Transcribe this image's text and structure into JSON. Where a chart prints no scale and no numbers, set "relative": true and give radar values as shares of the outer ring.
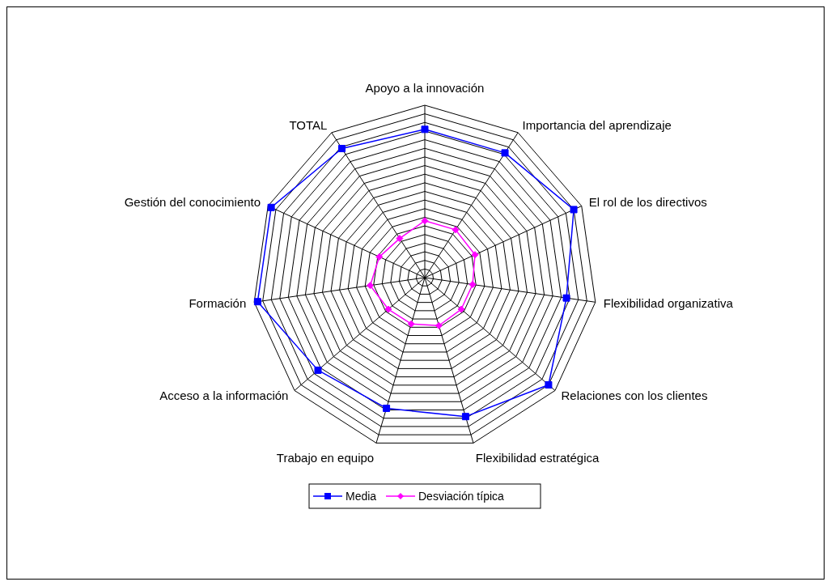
{
  "chart_data": {
    "type": "radar",
    "relative": true,
    "grid": true,
    "legend": "bottom",
    "categories": [
      "Apoyo a la innovación",
      "Importancia del aprendizaje",
      "El rol de los directivos",
      "Flexibilidad organizativa",
      "Relaciones con los clientes",
      "Flexibilidad estratégica",
      "Trabajo en equipo",
      "Acceso a la información",
      "Formación",
      "Gestión del conocimiento",
      "TOTAL"
    ],
    "series": [
      {
        "name": "Media",
        "color": "#0000ff",
        "marker": "square",
        "values": [
          0.86,
          0.86,
          0.95,
          0.83,
          0.95,
          0.84,
          0.79,
          0.82,
          0.98,
          0.98,
          0.89
        ]
      },
      {
        "name": "Desviación típica",
        "color": "#ff00ff",
        "marker": "diamond",
        "values": [
          0.33,
          0.33,
          0.32,
          0.28,
          0.28,
          0.29,
          0.28,
          0.28,
          0.32,
          0.29,
          0.27
        ]
      }
    ]
  }
}
